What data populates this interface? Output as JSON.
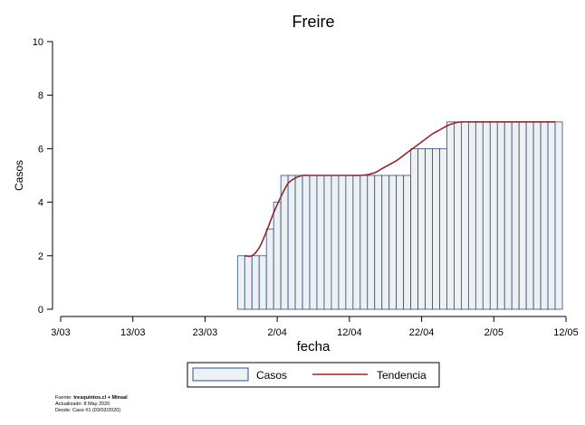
{
  "chart_data": {
    "type": "bar",
    "title": "Freire",
    "xlabel": "fecha",
    "ylabel": "Casos",
    "ylim": [
      0,
      10
    ],
    "yticks": [
      "0",
      "2",
      "4",
      "6",
      "8",
      "10"
    ],
    "xlim": [
      "2020-03-03",
      "2020-05-12"
    ],
    "xticks": [
      "3/03",
      "13/03",
      "23/03",
      "2/04",
      "12/04",
      "22/04",
      "2/05",
      "12/05"
    ],
    "xtick_dates": [
      "2020-03-03",
      "2020-03-13",
      "2020-03-23",
      "2020-04-02",
      "2020-04-12",
      "2020-04-22",
      "2020-05-02",
      "2020-05-12"
    ],
    "grid": false,
    "legend_position": "bottom",
    "colors": {
      "bar_fill": "#eef1f4",
      "bar_edge": "#2f4f7f",
      "trend": "#8b2b2f"
    },
    "series": [
      {
        "name": "Casos",
        "type": "bar",
        "start_date": "2020-03-28",
        "values": [
          2,
          2,
          2,
          2,
          3,
          4,
          5,
          5,
          5,
          5,
          5,
          5,
          5,
          5,
          5,
          5,
          5,
          5,
          5,
          5,
          5,
          5,
          5,
          5,
          6,
          6,
          6,
          6,
          6,
          7,
          7,
          7,
          7,
          7,
          7,
          7,
          7,
          7,
          7,
          7,
          7,
          7,
          7,
          7,
          7
        ]
      },
      {
        "name": "Tendencia",
        "type": "line",
        "start_date": "2020-03-29",
        "values": [
          2,
          2,
          2.3,
          2.9,
          3.6,
          4.2,
          4.7,
          4.9,
          5,
          5,
          5,
          5,
          5,
          5,
          5,
          5,
          5,
          5.03,
          5.1,
          5.25,
          5.4,
          5.55,
          5.75,
          5.95,
          6.15,
          6.35,
          6.55,
          6.7,
          6.85,
          6.95,
          7,
          7,
          7,
          7,
          7,
          7,
          7,
          7,
          7,
          7,
          7,
          7,
          7,
          7
        ]
      }
    ]
  },
  "footer": {
    "source_label": "Fuente: ",
    "source_value": "tresquintos.cl + Minsal",
    "updated": "Actualizado: 8 May 2020",
    "since": "Desde: Caso #1  (03/03/2020)"
  }
}
